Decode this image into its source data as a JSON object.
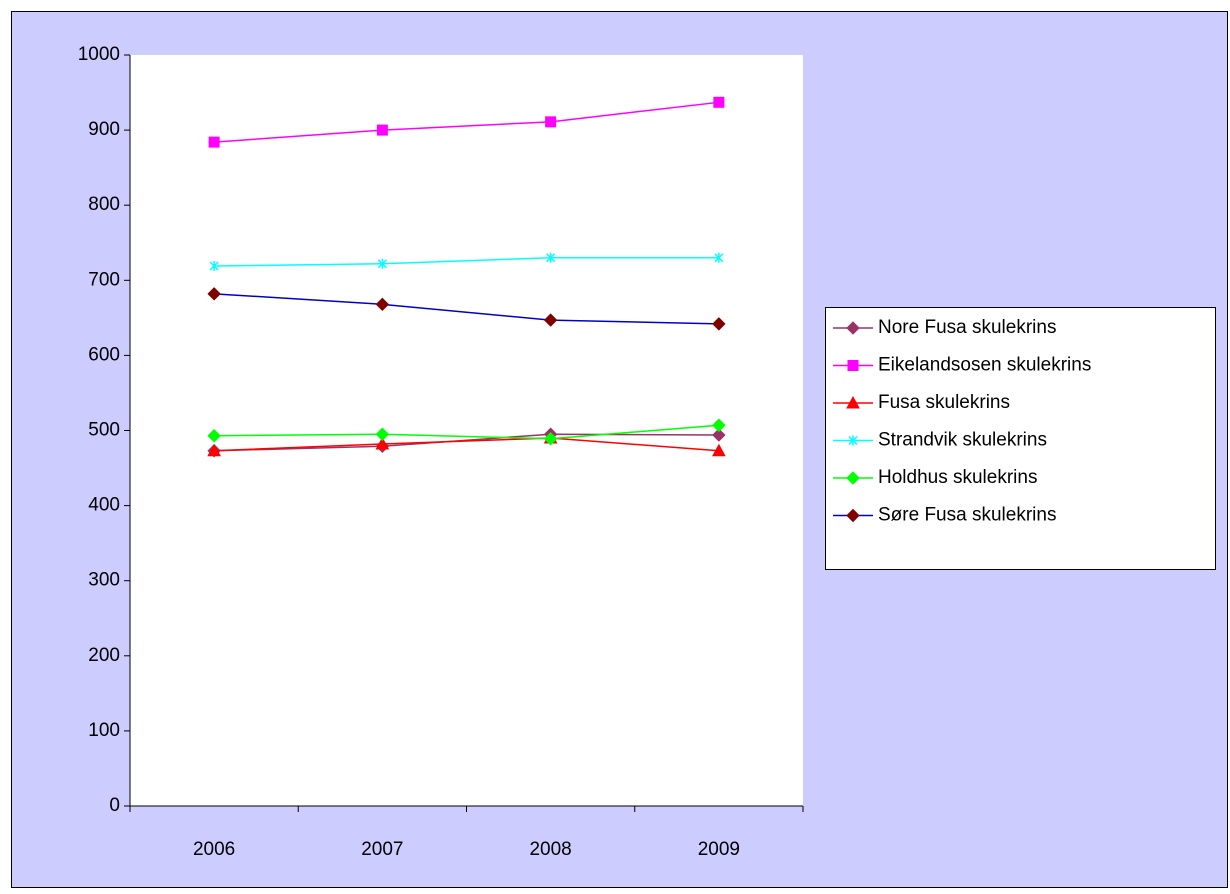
{
  "chart_data": {
    "type": "line",
    "categories": [
      "2006",
      "2007",
      "2008",
      "2009"
    ],
    "series": [
      {
        "name": "Nore Fusa skulekrins",
        "color": "#993366",
        "marker": "diamond",
        "values": [
          473,
          479,
          495,
          494
        ]
      },
      {
        "name": "Eikelandsosen skulekrins",
        "color": "#FF00FF",
        "marker": "square",
        "values": [
          884,
          900,
          911,
          937
        ]
      },
      {
        "name": "Fusa skulekrins",
        "color": "#FF0000",
        "marker": "triangle",
        "values": [
          473,
          482,
          490,
          473
        ]
      },
      {
        "name": "Strandvik skulekrins",
        "color": "#00FFFF",
        "marker": "x",
        "values": [
          719,
          722,
          730,
          730
        ]
      },
      {
        "name": "Holdhus skulekrins",
        "color": "#00FF00",
        "marker": "diamond",
        "values": [
          493,
          495,
          489,
          507
        ]
      },
      {
        "name": "Søre Fusa skulekrins",
        "color": "#0000CC",
        "marker_color": "#800000",
        "marker": "diamond",
        "values": [
          682,
          668,
          647,
          642
        ]
      }
    ],
    "ylim": [
      0,
      1000
    ],
    "yticks": [
      0,
      100,
      200,
      300,
      400,
      500,
      600,
      700,
      800,
      900,
      1000
    ],
    "legend": "right"
  }
}
